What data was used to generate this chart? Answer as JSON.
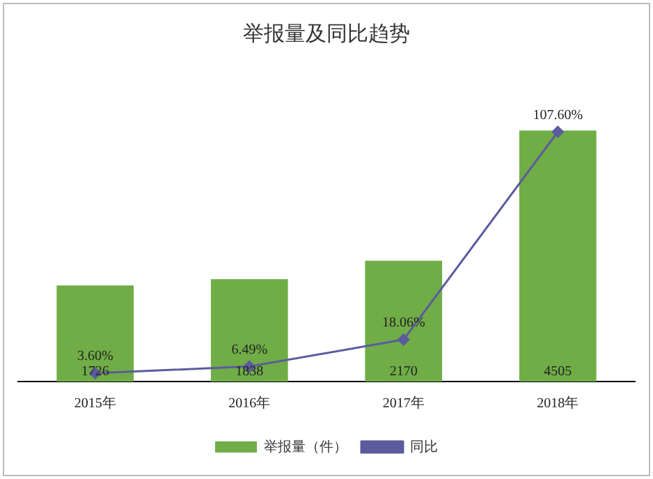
{
  "chart_data": {
    "type": "bar",
    "title": "举报量及同比趋势",
    "categories": [
      "2015年",
      "2016年",
      "2017年",
      "2018年"
    ],
    "series": [
      {
        "name": "举报量（件）",
        "color": "#70ad47",
        "values": [
          1726,
          1838,
          2170,
          4505
        ]
      },
      {
        "name": "同比",
        "type": "line",
        "axis": "y2",
        "color": "#5b5b9e",
        "values": [
          3.6,
          6.49,
          18.06,
          107.6
        ],
        "value_labels": [
          "3.60%",
          "6.49%",
          "18.06%",
          "107.60%"
        ]
      }
    ],
    "data_labels": true,
    "tick_labels": "x",
    "legend": "bottom",
    "grid": false,
    "marker": "diamond",
    "line_style": "solid"
  }
}
